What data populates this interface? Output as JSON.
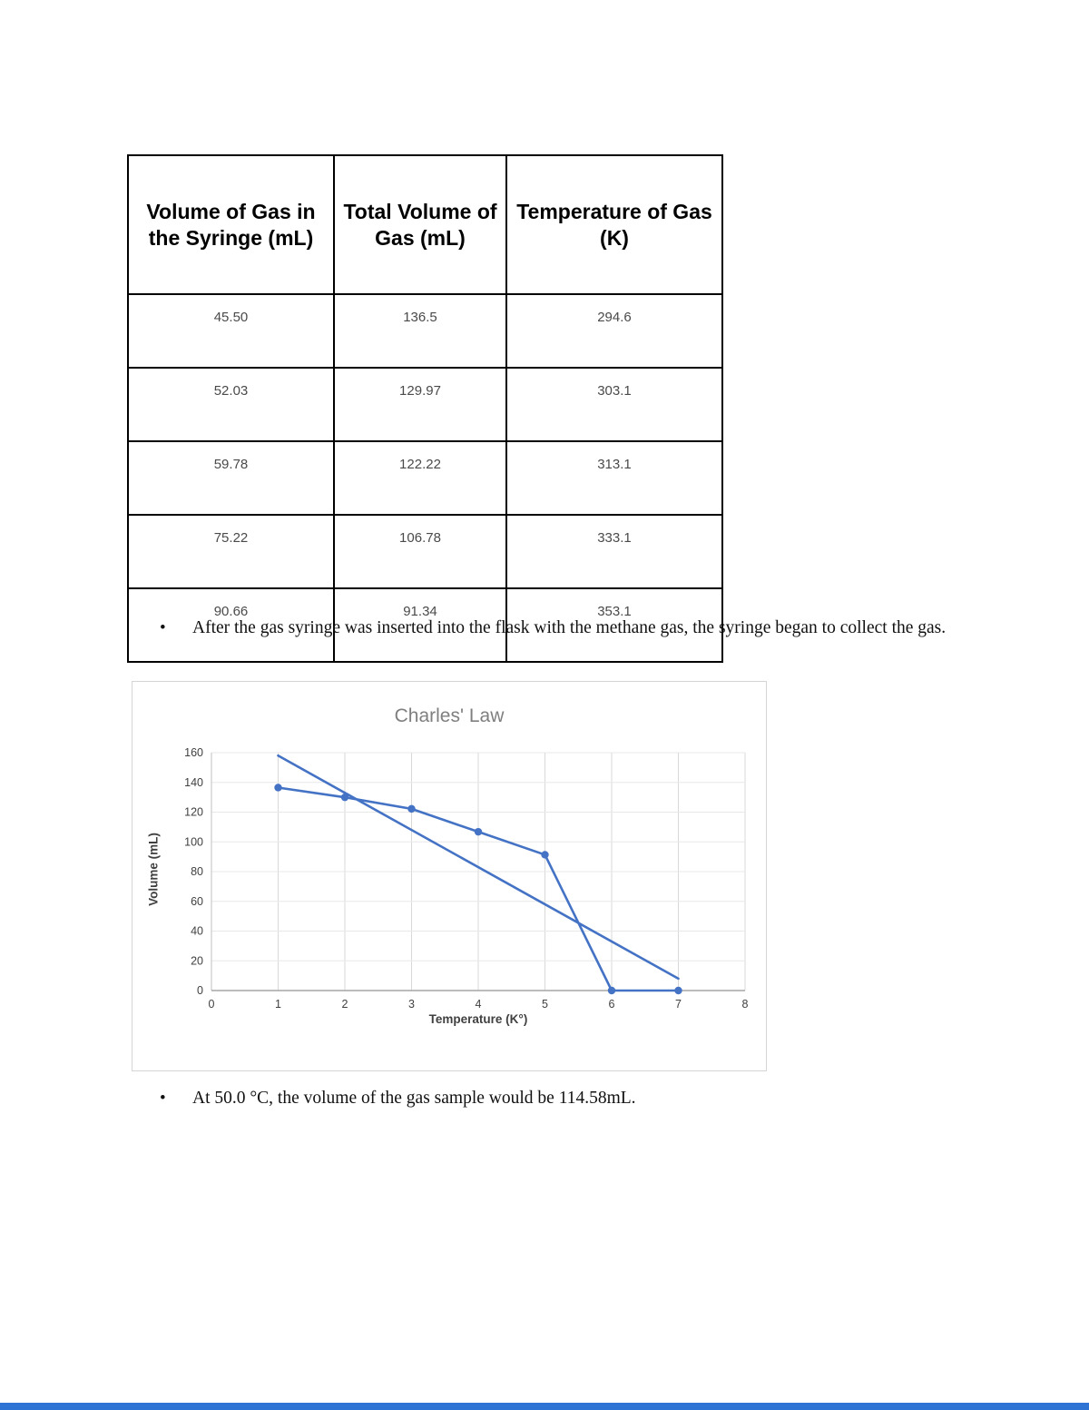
{
  "colors": {
    "accent_blue": "#4472c4",
    "divider_blue": "#2e74d4"
  },
  "table": {
    "headers": [
      "Volume of Gas in the Syringe (mL)",
      "Total Volume of Gas (mL)",
      "Temperature of Gas (K)"
    ],
    "rows": [
      [
        "45.50",
        "136.5",
        "294.6"
      ],
      [
        "52.03",
        "129.97",
        "303.1"
      ],
      [
        "59.78",
        "122.22",
        "313.1"
      ],
      [
        "75.22",
        "106.78",
        "333.1"
      ],
      [
        "90.66",
        "91.34",
        "353.1"
      ]
    ]
  },
  "bullets": {
    "bullet_marker": "•",
    "bullet1": "After the gas syringe was inserted into the flask with the methane gas, the syringe began to collect the gas.",
    "bullet2": "At 50.0 °C, the volume of the gas sample would be 114.58mL."
  },
  "chart_data": {
    "type": "line",
    "title": "Charles' Law",
    "xlabel": "Temperature (K°)",
    "ylabel": "Volume (mL)",
    "xlim": [
      0,
      8
    ],
    "ylim": [
      0,
      160
    ],
    "xticks": [
      0,
      1,
      2,
      3,
      4,
      5,
      6,
      7,
      8
    ],
    "yticks": [
      0,
      20,
      40,
      60,
      80,
      100,
      120,
      140,
      160
    ],
    "grid": true,
    "legend": "none",
    "color": "#4472c4",
    "series": [
      {
        "name": "Total Volume of Gas (mL)",
        "marker": true,
        "x": [
          1,
          2,
          3,
          4,
          5,
          6,
          7
        ],
        "y": [
          136.5,
          129.97,
          122.22,
          106.78,
          91.34,
          0,
          0
        ]
      },
      {
        "name": "trendline",
        "marker": false,
        "x": [
          1,
          7
        ],
        "y": [
          158,
          8
        ]
      }
    ]
  }
}
